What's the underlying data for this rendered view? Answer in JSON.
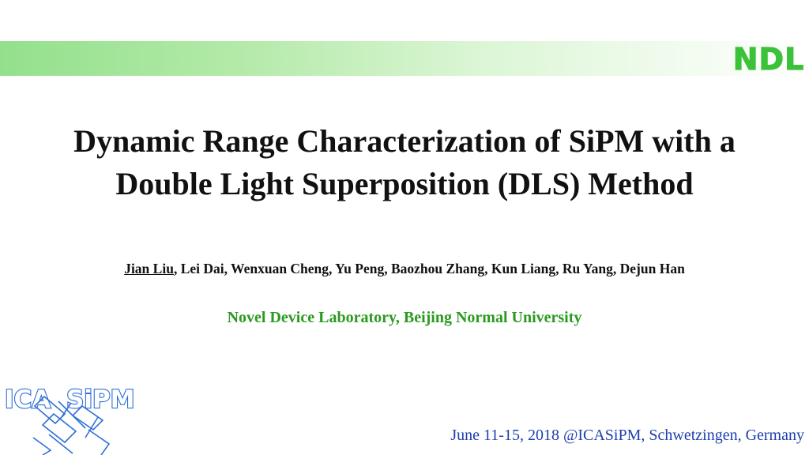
{
  "header": {
    "band_color_start": "#93e08c",
    "band_color_end": "#ffffff",
    "logo_text": "NDL",
    "logo_color": "#3cc23a"
  },
  "title": {
    "line1": "Dynamic Range Characterization of SiPM with a",
    "line2": "Double Light Superposition (DLS) Method"
  },
  "authors": {
    "first_author": "Jian Liu",
    "others": ", Lei Dai, Wenxuan Cheng,  Yu Peng, Baozhou Zhang,  Kun Liang, Ru Yang, Dejun Han"
  },
  "affiliation": {
    "text": "Novel Device Laboratory, Beijing Normal University",
    "color": "#2a9a1f"
  },
  "conference_logo": {
    "left_text": "ICA",
    "right_text": "SiPM",
    "color": "#2f6fd6"
  },
  "footer": {
    "date_venue": "June 11-15, 2018 @ICASiPM, Schwetzingen, Germany",
    "color": "#1d3fb0"
  }
}
